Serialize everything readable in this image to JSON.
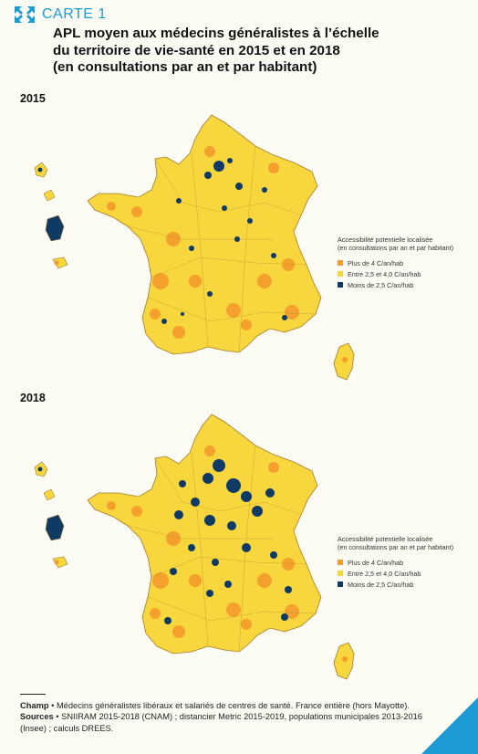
{
  "header": {
    "label": "CARTE 1",
    "title_lines": [
      "APL moyen aux médecins généralistes à l’échelle",
      "du territoire de vie-santé en 2015 et en 2018",
      "(en consultations par an et par habitant)"
    ]
  },
  "maps": [
    {
      "year": "2015",
      "legend": {
        "title_line1": "Accessibilité potentielle localisée",
        "title_line2": "(en consultations par an et par habitant)",
        "items": [
          {
            "label": "Plus de 4 C/an/hab",
            "color": "#f39a2b"
          },
          {
            "label": "Entre 2,5 et 4,0 C/an/hab",
            "color": "#f8d73e"
          },
          {
            "label": "Moins de 2,5 C/an/hab",
            "color": "#0f3a66"
          }
        ]
      }
    },
    {
      "year": "2018",
      "legend": {
        "title_line1": "Accessibilité potentielle localisée",
        "title_line2": "(en consultations par an et par habitant)",
        "items": [
          {
            "label": "Plus de 4 C/an/hab",
            "color": "#f39a2b"
          },
          {
            "label": "Entre 2,5 et 4,0 C/an/hab",
            "color": "#f8d73e"
          },
          {
            "label": "Moins de 2,5 C/an/hab",
            "color": "#0f3a66"
          }
        ]
      }
    }
  ],
  "notes": {
    "champ_label": "Champ",
    "champ_text": "Médecins généralistes libéraux et salariés de centres de santé. France entière (hors Mayotte).",
    "sources_label": "Sources",
    "sources_text": "SNIIRAM 2015-2018 (CNAM) ; distancier Metric 2015-2019, populations municipales 2013-2016 (Insee) ; calculs DREES."
  }
}
